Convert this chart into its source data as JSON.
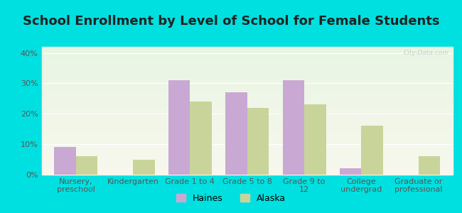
{
  "title": "School Enrollment by Level of School for Female Students",
  "categories": [
    "Nursery,\npreschool",
    "Kindergarten",
    "Grade 1 to 4",
    "Grade 5 to 8",
    "Grade 9 to\n12",
    "College\nundergrad",
    "Graduate or\nprofessional"
  ],
  "haines": [
    9,
    0,
    31,
    27,
    31,
    2,
    0
  ],
  "alaska": [
    6,
    5,
    24,
    22,
    23,
    16,
    6
  ],
  "haines_color": "#c9a8d4",
  "alaska_color": "#c8d49a",
  "ylim": [
    0,
    42
  ],
  "yticks": [
    0,
    10,
    20,
    30,
    40
  ],
  "ytick_labels": [
    "0%",
    "10%",
    "20%",
    "30%",
    "40%"
  ],
  "background_outer": "#00e0e0",
  "bar_width": 0.38,
  "legend_labels": [
    "Haines",
    "Alaska"
  ],
  "watermark": "City-Data.com",
  "title_fontsize": 13,
  "axis_label_fontsize": 8,
  "tick_fontsize": 8
}
